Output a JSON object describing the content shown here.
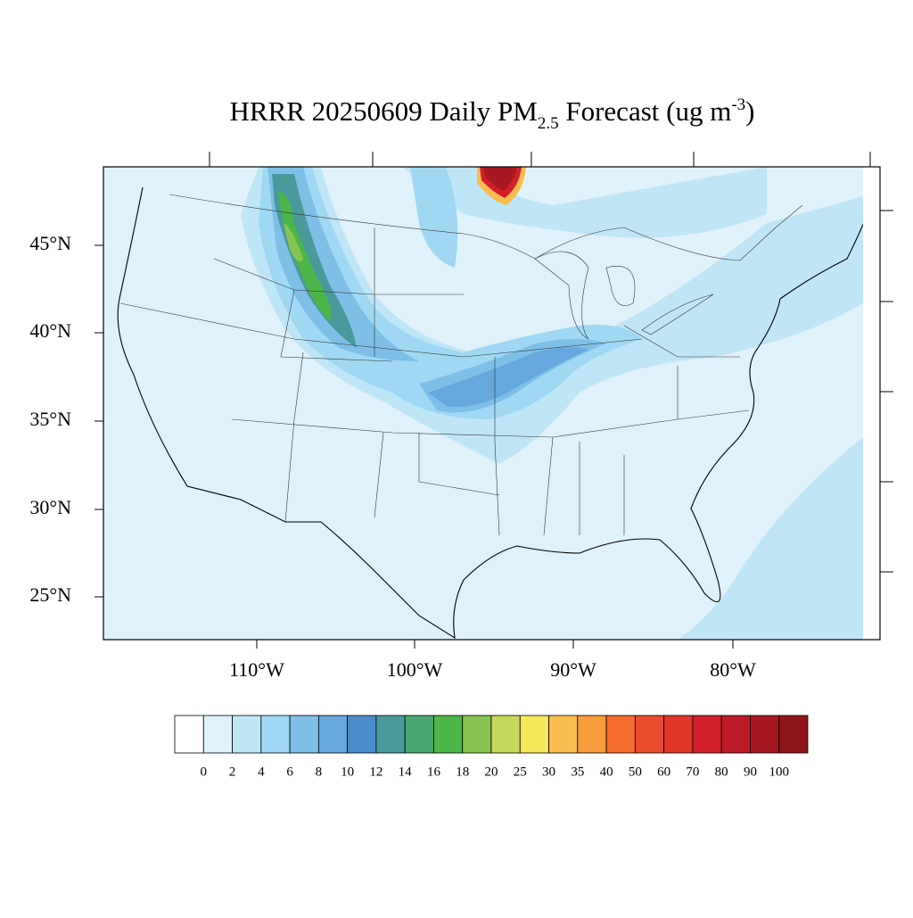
{
  "title": {
    "prefix": "HRRR 20250609 Daily PM",
    "subscript": "2.5",
    "middle": " Forecast (ug m",
    "superscript": "-3",
    "suffix": ")"
  },
  "latitude_labels": [
    "45°N",
    "40°N",
    "35°N",
    "30°N",
    "25°N"
  ],
  "longitude_labels": [
    "110°W",
    "100°W",
    "90°W",
    "80°W"
  ],
  "colorbar": {
    "levels": [
      0,
      2,
      4,
      6,
      8,
      10,
      12,
      14,
      16,
      18,
      20,
      25,
      30,
      35,
      40,
      50,
      60,
      70,
      80,
      90,
      100
    ],
    "colors": [
      "#ffffff",
      "#dff1fa",
      "#bfe6f7",
      "#a0d8f3",
      "#7fbfe6",
      "#66a8dd",
      "#4a8ccc",
      "#4a9a9c",
      "#48a870",
      "#4db648",
      "#86c450",
      "#c6d85a",
      "#f6e65a",
      "#f8bd4c",
      "#f89b3c",
      "#f46c2c",
      "#e84c2c",
      "#e0362a",
      "#d21f2a",
      "#bb1a26",
      "#a81820",
      "#8e151a"
    ]
  }
}
